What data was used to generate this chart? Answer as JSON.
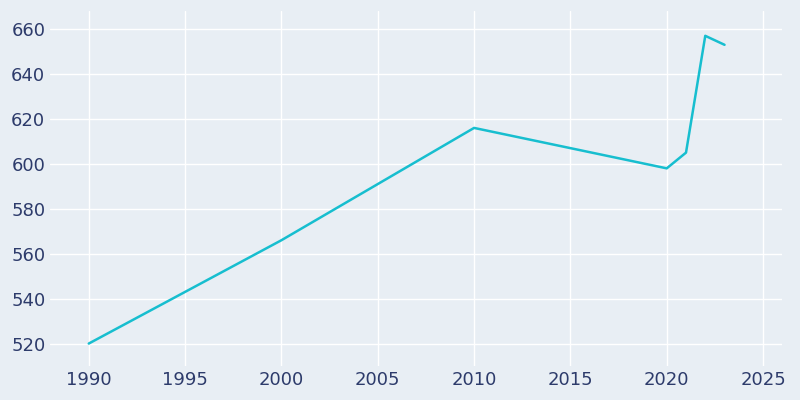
{
  "years": [
    1990,
    2000,
    2010,
    2020,
    2021,
    2022,
    2023
  ],
  "population": [
    520,
    566,
    616,
    598,
    605,
    657,
    653
  ],
  "line_color": "#17BECF",
  "background_color": "#E8EEF4",
  "grid_color": "#FFFFFF",
  "text_color": "#2D3B6B",
  "xlim": [
    1988,
    2026
  ],
  "ylim": [
    510,
    668
  ],
  "xticks": [
    1990,
    1995,
    2000,
    2005,
    2010,
    2015,
    2020,
    2025
  ],
  "yticks": [
    520,
    540,
    560,
    580,
    600,
    620,
    640,
    660
  ],
  "linewidth": 1.8,
  "label_fontsize": 13
}
